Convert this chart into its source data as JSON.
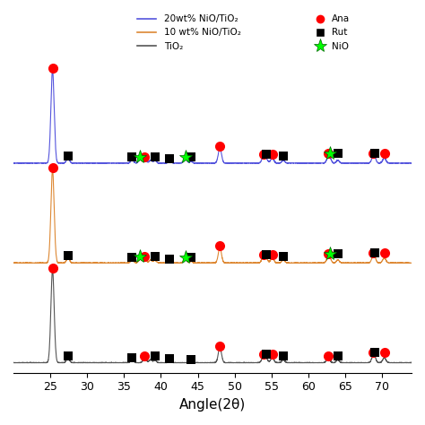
{
  "xlabel": "Angle(2θ)",
  "xlim": [
    20,
    74
  ],
  "x_ticks": [
    25,
    30,
    35,
    40,
    45,
    50,
    55,
    60,
    65,
    70
  ],
  "line_colors": {
    "20wt": "#5555dd",
    "10wt": "#dd8833",
    "TiO2": "#555555"
  },
  "legend_lines": [
    {
      "label": "20wt% NiO/TiO₂",
      "color": "#5555dd"
    },
    {
      "label": "10 wt% NiO/TiO₂",
      "color": "#dd8833"
    },
    {
      "label": "TiO₂",
      "color": "#555555"
    }
  ],
  "offsets": {
    "20wt": 6.0,
    "10wt": 3.0,
    "TiO2": 0.0
  },
  "ylim": [
    -0.3,
    10.5
  ],
  "background_color": "#ffffff",
  "anatase_marker_size": 8,
  "rutile_marker_size": 7,
  "nio_marker_size": 11
}
